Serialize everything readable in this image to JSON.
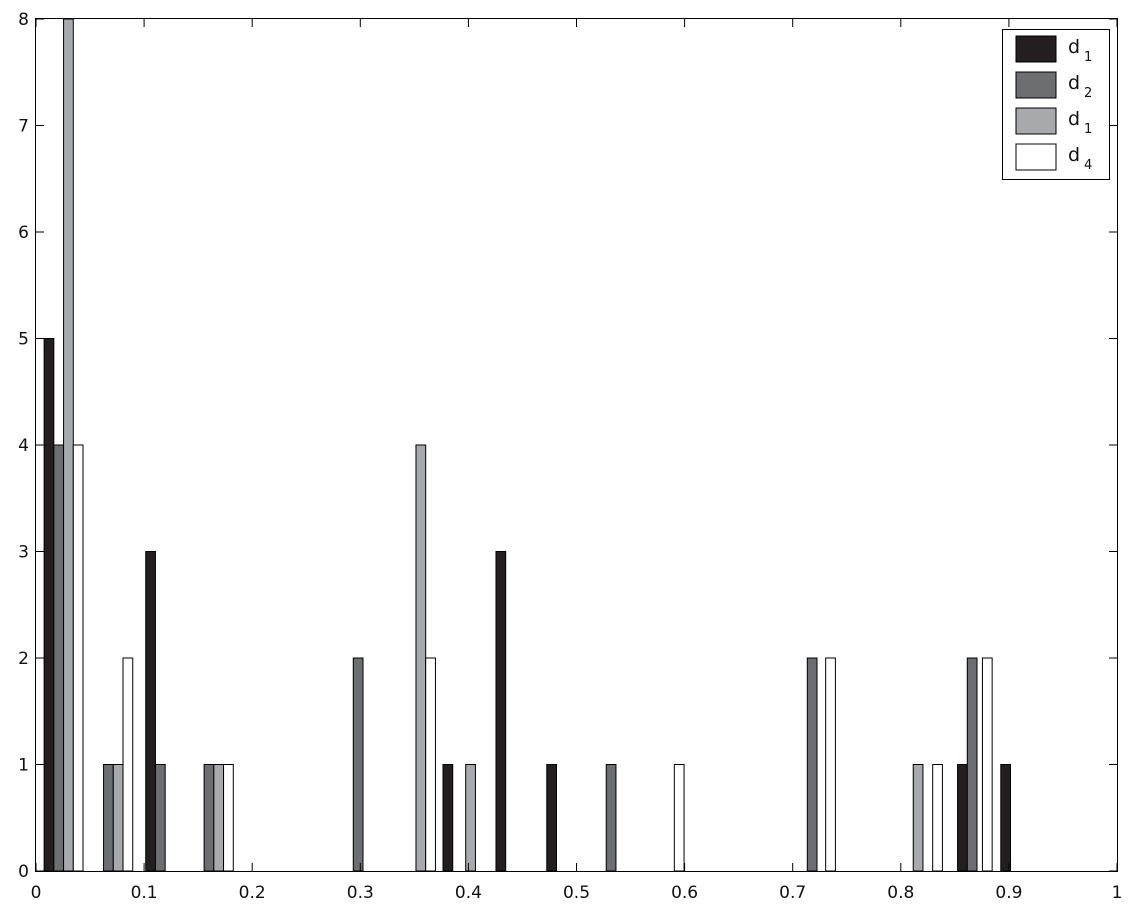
{
  "chart_data": {
    "type": "bar",
    "title": "",
    "xlabel": "",
    "ylabel": "",
    "xlim": [
      0,
      1
    ],
    "ylim": [
      0,
      8
    ],
    "grid": false,
    "legend_position": "top-right",
    "x_ticks": [
      "0",
      "0.1",
      "0.2",
      "0.3",
      "0.4",
      "0.5",
      "0.6",
      "0.7",
      "0.8",
      "0.9",
      "1"
    ],
    "y_ticks": [
      "0",
      "1",
      "2",
      "3",
      "4",
      "5",
      "6",
      "7",
      "8"
    ],
    "bar_width": 0.009,
    "series": [
      {
        "name": "d",
        "subscript": "1",
        "color": "#231f20",
        "x": [
          0.012,
          0.106,
          0.381,
          0.43,
          0.477,
          0.857,
          0.897
        ],
        "values": [
          5,
          3,
          1,
          3,
          1,
          1,
          1
        ]
      },
      {
        "name": "d",
        "subscript": "2",
        "color": "#6d6e71",
        "x": [
          0.021,
          0.067,
          0.115,
          0.16,
          0.298,
          0.532,
          0.718,
          0.866
        ],
        "values": [
          4,
          1,
          1,
          1,
          2,
          1,
          2,
          2
        ]
      },
      {
        "name": "d",
        "subscript": "1",
        "color": "#a7a9ac",
        "x": [
          0.03,
          0.076,
          0.169,
          0.356,
          0.402,
          0.816
        ],
        "values": [
          8,
          1,
          1,
          4,
          1,
          1
        ]
      },
      {
        "name": "d",
        "subscript": "4",
        "color": "#ffffff",
        "x": [
          0.039,
          0.085,
          0.178,
          0.365,
          0.595,
          0.735,
          0.834,
          0.88
        ],
        "values": [
          4,
          2,
          1,
          2,
          1,
          2,
          1,
          2
        ]
      }
    ]
  }
}
